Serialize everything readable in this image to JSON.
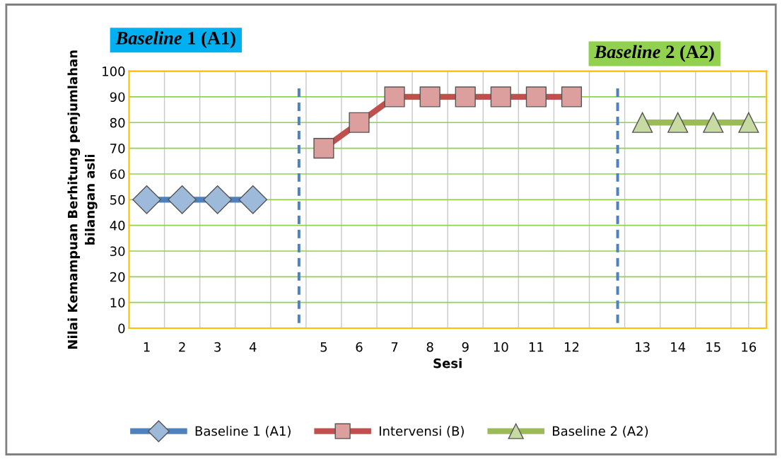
{
  "chart_data": {
    "type": "line",
    "xlabel": "Sesi",
    "ylabel": "Nilai Kemampuan Berhitung penjumlahan\nbilangan asli",
    "categories": [
      "1",
      "2",
      "3",
      "4",
      null,
      "5",
      "6",
      "7",
      "8",
      "9",
      "10",
      "11",
      "12",
      null,
      "13",
      "14",
      "15",
      "16"
    ],
    "series": [
      {
        "name": "Baseline 1 (A1)",
        "color": "#4f81bd",
        "marker": "diamond",
        "values": [
          50,
          50,
          50,
          50,
          null,
          null,
          null,
          null,
          null,
          null,
          null,
          null,
          null,
          null,
          null,
          null,
          null,
          null
        ]
      },
      {
        "name": "Intervensi (B)",
        "color": "#c0504d",
        "marker": "square",
        "values": [
          null,
          null,
          null,
          null,
          null,
          70,
          80,
          90,
          90,
          90,
          90,
          90,
          90,
          null,
          null,
          null,
          null,
          null
        ]
      },
      {
        "name": "Baseline 2 (A2)",
        "color": "#9bbb59",
        "marker": "triangle",
        "values": [
          null,
          null,
          null,
          null,
          null,
          null,
          null,
          null,
          null,
          null,
          null,
          null,
          null,
          null,
          80,
          80,
          80,
          80
        ]
      }
    ],
    "ylim": [
      0,
      100
    ],
    "yticks": [
      0,
      10,
      20,
      30,
      40,
      50,
      60,
      70,
      80,
      90,
      100
    ],
    "annotations": [
      "Baseline 1 (A1)",
      "Baseline 2 (A2)"
    ],
    "grid": true,
    "legend": "bottom"
  }
}
